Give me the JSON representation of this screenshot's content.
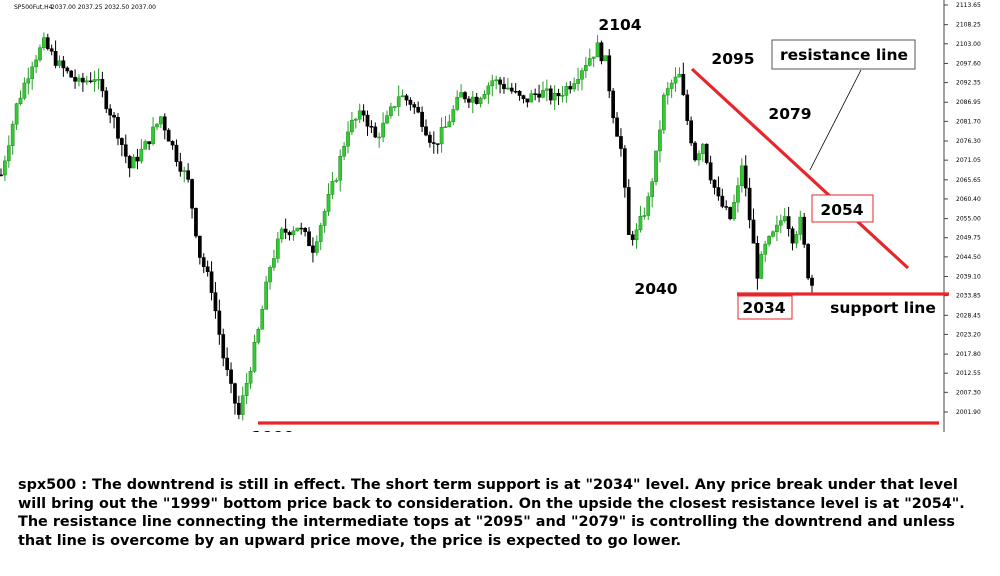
{
  "symbol_label": "SP500Fut,H4",
  "ohlc_readout": "2037.00 2037.25 2032.50 2037.00",
  "chart_data": {
    "type": "candlestick",
    "title": "",
    "yaxis_ticks": [
      2113.65,
      2108.25,
      2103.0,
      2097.6,
      2092.35,
      2086.95,
      2081.7,
      2076.3,
      2071.05,
      2065.65,
      2060.4,
      2055.0,
      2049.75,
      2044.5,
      2039.1,
      2033.85,
      2028.45,
      2023.2,
      2017.8,
      2012.55,
      2007.3,
      2001.9
    ],
    "ylim": [
      1998.6,
      2116.4
    ],
    "price_points": [
      {
        "i": 0,
        "p": 2067
      },
      {
        "i": 4,
        "p": 2086
      },
      {
        "i": 8,
        "p": 2098
      },
      {
        "i": 11,
        "p": 2103
      },
      {
        "i": 15,
        "p": 2097
      },
      {
        "i": 20,
        "p": 2092
      },
      {
        "i": 24,
        "p": 2094
      },
      {
        "i": 29,
        "p": 2082
      },
      {
        "i": 33,
        "p": 2069
      },
      {
        "i": 37,
        "p": 2075
      },
      {
        "i": 41,
        "p": 2083
      },
      {
        "i": 45,
        "p": 2072
      },
      {
        "i": 48,
        "p": 2065
      },
      {
        "i": 51,
        "p": 2045
      },
      {
        "i": 54,
        "p": 2036
      },
      {
        "i": 57,
        "p": 2017
      },
      {
        "i": 59,
        "p": 2008
      },
      {
        "i": 61,
        "p": 2001
      },
      {
        "i": 63,
        "p": 2010
      },
      {
        "i": 66,
        "p": 2024
      },
      {
        "i": 69,
        "p": 2042
      },
      {
        "i": 72,
        "p": 2051
      },
      {
        "i": 76,
        "p": 2053
      },
      {
        "i": 80,
        "p": 2047
      },
      {
        "i": 83,
        "p": 2057
      },
      {
        "i": 86,
        "p": 2067
      },
      {
        "i": 89,
        "p": 2080
      },
      {
        "i": 93,
        "p": 2084
      },
      {
        "i": 96,
        "p": 2077
      },
      {
        "i": 99,
        "p": 2082
      },
      {
        "i": 102,
        "p": 2089
      },
      {
        "i": 105,
        "p": 2087
      },
      {
        "i": 108,
        "p": 2082
      },
      {
        "i": 111,
        "p": 2075
      },
      {
        "i": 114,
        "p": 2080
      },
      {
        "i": 118,
        "p": 2089
      },
      {
        "i": 122,
        "p": 2088
      },
      {
        "i": 126,
        "p": 2093
      },
      {
        "i": 130,
        "p": 2091
      },
      {
        "i": 134,
        "p": 2087
      },
      {
        "i": 138,
        "p": 2090
      },
      {
        "i": 142,
        "p": 2088
      },
      {
        "i": 146,
        "p": 2092
      },
      {
        "i": 150,
        "p": 2098
      },
      {
        "i": 153,
        "p": 2102
      },
      {
        "i": 155,
        "p": 2098
      },
      {
        "i": 157,
        "p": 2084
      },
      {
        "i": 159,
        "p": 2074
      },
      {
        "i": 161,
        "p": 2050
      },
      {
        "i": 163,
        "p": 2051
      },
      {
        "i": 166,
        "p": 2060
      },
      {
        "i": 168,
        "p": 2072
      },
      {
        "i": 170,
        "p": 2088
      },
      {
        "i": 172,
        "p": 2092
      },
      {
        "i": 174,
        "p": 2094
      },
      {
        "i": 176,
        "p": 2082
      },
      {
        "i": 178,
        "p": 2072
      },
      {
        "i": 180,
        "p": 2076
      },
      {
        "i": 182,
        "p": 2067
      },
      {
        "i": 184,
        "p": 2060
      },
      {
        "i": 187,
        "p": 2055
      },
      {
        "i": 189,
        "p": 2063
      },
      {
        "i": 190,
        "p": 2070
      },
      {
        "i": 192,
        "p": 2055
      },
      {
        "i": 194,
        "p": 2040
      },
      {
        "i": 196,
        "p": 2047
      },
      {
        "i": 199,
        "p": 2052
      },
      {
        "i": 201,
        "p": 2057
      },
      {
        "i": 203,
        "p": 2050
      },
      {
        "i": 205,
        "p": 2054
      },
      {
        "i": 207,
        "p": 2040
      },
      {
        "i": 208,
        "p": 2037
      }
    ],
    "annotations": [
      {
        "label": "2104",
        "type": "price"
      },
      {
        "label": "2095",
        "type": "price"
      },
      {
        "label": "2079",
        "type": "price"
      },
      {
        "label": "2040",
        "type": "price"
      },
      {
        "label": "1999",
        "type": "price"
      },
      {
        "label": "2054",
        "type": "boxed"
      },
      {
        "label": "2034",
        "type": "boxed"
      },
      {
        "label": "resistance line",
        "type": "boxed"
      },
      {
        "label": "support line",
        "type": "price"
      }
    ],
    "lines": [
      {
        "name": "resistance",
        "from": 2095,
        "to": 2044,
        "color": "#e8262a"
      },
      {
        "name": "support",
        "level": 2034,
        "color": "#e8262a"
      },
      {
        "name": "bottom",
        "level": 2001,
        "color": "#e8262a"
      }
    ],
    "colors": {
      "bull": "#34c934",
      "bear": "#000000",
      "line": "#e8262a",
      "axis": "#333333"
    }
  },
  "caption": "spx500 : The downtrend is still in effect. The short term support is at \"2034\" level. Any price break under that level will bring out the \"1999\" bottom price back to consideration. On the upside the closest resistance level is at \"2054\". The resistance line connecting the intermediate tops at \"2095\" and \"2079\" is controlling the downtrend and unless that line is overcome by an upward price move, the price is expected to go lower."
}
